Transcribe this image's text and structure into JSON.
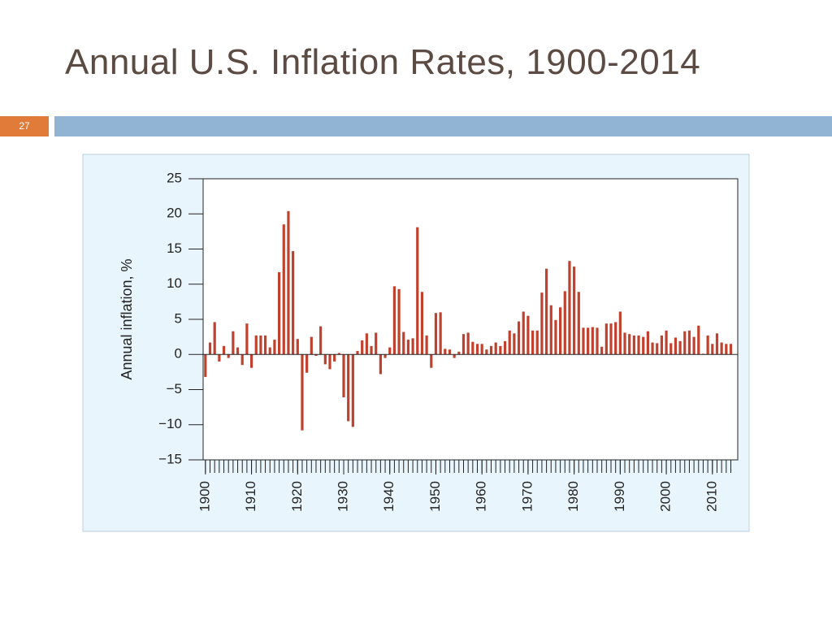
{
  "slide": {
    "title": "Annual U.S. Inflation Rates, 1900-2014",
    "number": "27"
  },
  "chart_data": {
    "type": "bar",
    "y_label": "Annual inflation, %",
    "color": "#c0412d",
    "x": [
      1900,
      1901,
      1902,
      1903,
      1904,
      1905,
      1906,
      1907,
      1908,
      1909,
      1910,
      1911,
      1912,
      1913,
      1914,
      1915,
      1916,
      1917,
      1918,
      1919,
      1920,
      1921,
      1922,
      1923,
      1924,
      1925,
      1926,
      1927,
      1928,
      1929,
      1930,
      1931,
      1932,
      1933,
      1934,
      1935,
      1936,
      1937,
      1938,
      1939,
      1940,
      1941,
      1942,
      1943,
      1944,
      1945,
      1946,
      1947,
      1948,
      1949,
      1950,
      1951,
      1952,
      1953,
      1954,
      1955,
      1956,
      1957,
      1958,
      1959,
      1960,
      1961,
      1962,
      1963,
      1964,
      1965,
      1966,
      1967,
      1968,
      1969,
      1970,
      1971,
      1972,
      1973,
      1974,
      1975,
      1976,
      1977,
      1978,
      1979,
      1980,
      1981,
      1982,
      1983,
      1984,
      1985,
      1986,
      1987,
      1988,
      1989,
      1990,
      1991,
      1992,
      1993,
      1994,
      1995,
      1996,
      1997,
      1998,
      1999,
      2000,
      2001,
      2002,
      2003,
      2004,
      2005,
      2006,
      2007,
      2008,
      2009,
      2010,
      2011,
      2012,
      2013,
      2014
    ],
    "values": [
      -3.2,
      1.7,
      4.6,
      -1.0,
      1.2,
      -0.5,
      3.3,
      1.0,
      -1.5,
      4.4,
      -1.9,
      2.7,
      2.7,
      2.7,
      1.0,
      2.1,
      11.7,
      18.5,
      20.4,
      14.7,
      2.2,
      -10.8,
      -2.6,
      2.5,
      -0.2,
      4.0,
      -1.4,
      -2.1,
      -1.0,
      0.2,
      -6.1,
      -9.5,
      -10.3,
      0.5,
      2.0,
      3.0,
      1.2,
      3.1,
      -2.8,
      -0.5,
      1.0,
      9.7,
      9.3,
      3.2,
      2.1,
      2.3,
      18.1,
      8.9,
      2.7,
      -1.9,
      5.9,
      6.0,
      0.8,
      0.7,
      -0.5,
      0.4,
      2.9,
      3.1,
      1.8,
      1.5,
      1.5,
      0.7,
      1.2,
      1.7,
      1.2,
      1.9,
      3.4,
      3.0,
      4.7,
      6.1,
      5.5,
      3.4,
      3.4,
      8.8,
      12.2,
      7.0,
      4.9,
      6.7,
      9.0,
      13.3,
      12.5,
      8.9,
      3.8,
      3.8,
      3.9,
      3.8,
      1.1,
      4.4,
      4.4,
      4.6,
      6.1,
      3.1,
      2.9,
      2.7,
      2.7,
      2.5,
      3.3,
      1.7,
      1.6,
      2.7,
      3.4,
      1.6,
      2.4,
      1.9,
      3.3,
      3.4,
      2.5,
      4.1,
      0.1,
      2.7,
      1.5,
      3.0,
      1.7,
      1.5,
      1.5
    ],
    "xlim": [
      1899.5,
      2015.5
    ],
    "xticks": [
      1900,
      1910,
      1920,
      1930,
      1940,
      1950,
      1960,
      1970,
      1980,
      1990,
      2000,
      2010
    ],
    "ylim": [
      -15,
      25
    ],
    "yticks": [
      {
        "value": -15,
        "label": "−15"
      },
      {
        "value": -10,
        "label": "−10"
      },
      {
        "value": -5,
        "label": "−5"
      },
      0,
      5,
      10,
      15,
      20,
      25
    ]
  }
}
